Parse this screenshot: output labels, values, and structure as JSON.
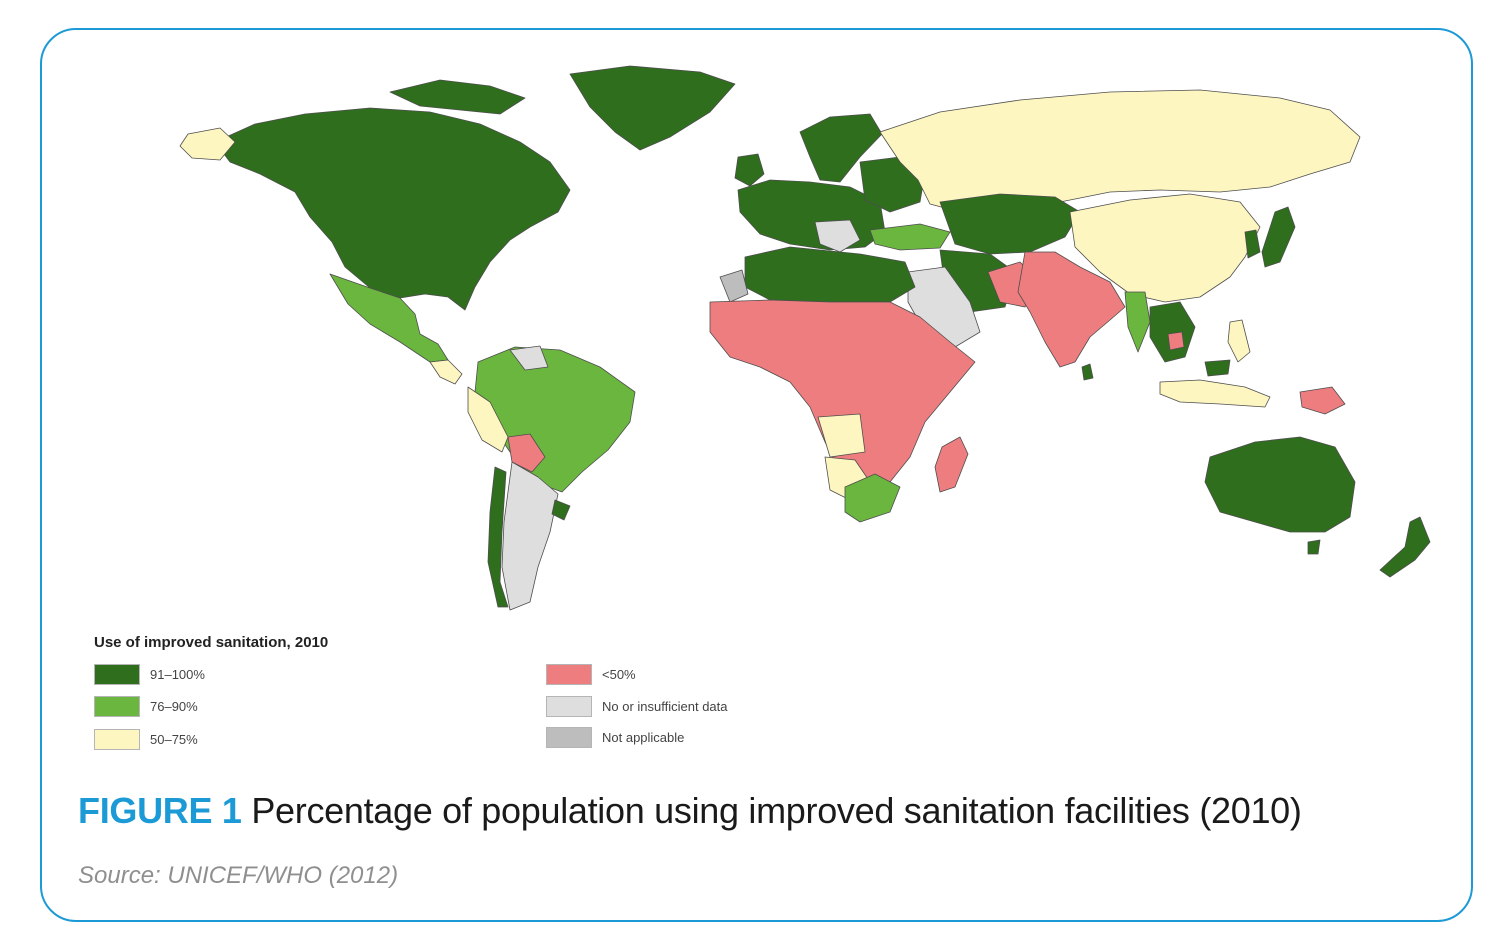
{
  "legend": {
    "title": "Use of improved sanitation, 2010",
    "items": [
      {
        "label": "91–100%",
        "color": "#2e6e1d"
      },
      {
        "label": "76–90%",
        "color": "#6bb63e"
      },
      {
        "label": "50–75%",
        "color": "#fdf6c0"
      },
      {
        "label": "<50%",
        "color": "#ee7d80"
      },
      {
        "label": "No or insufficient data",
        "color": "#dedede"
      },
      {
        "label": "Not applicable",
        "color": "#bdbdbd"
      }
    ]
  },
  "figure": {
    "label": "FIGURE 1",
    "title": "Percentage of population using improved sanitation facilities (2010)",
    "source": "Source: UNICEF/WHO (2012)"
  },
  "colors": {
    "frame_border": "#1c9ad6",
    "ocean": "#ffffff",
    "border_lines": "#5a5a5a"
  }
}
